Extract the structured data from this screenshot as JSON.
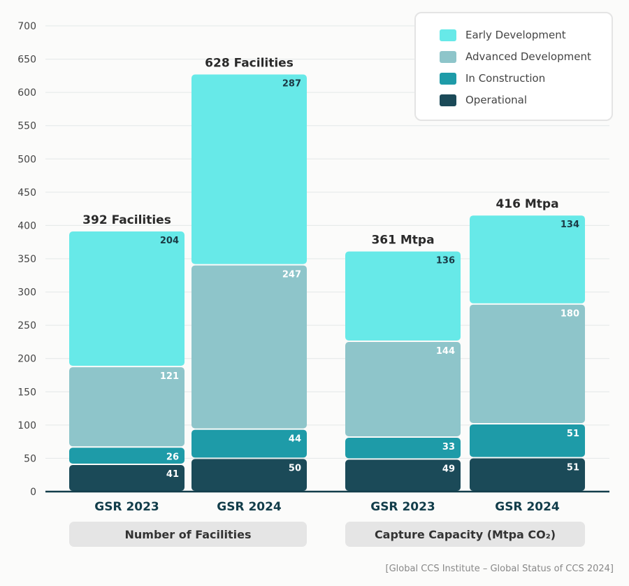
{
  "chart_data": {
    "type": "bar",
    "stacked": true,
    "categories": [
      "GSR 2023",
      "GSR 2024",
      "GSR 2023",
      "GSR 2024"
    ],
    "groups": [
      {
        "label": "Number of Facilities",
        "categories": [
          0,
          1
        ]
      },
      {
        "label": "Capture Capacity (Mtpa CO₂)",
        "categories": [
          2,
          3
        ]
      }
    ],
    "series": [
      {
        "name": "Operational",
        "color": "#1b4a58",
        "values": [
          41,
          50,
          49,
          51
        ]
      },
      {
        "name": "In Construction",
        "color": "#1e9ba8",
        "values": [
          26,
          44,
          33,
          51
        ]
      },
      {
        "name": "Advanced Development",
        "color": "#8ec5ca",
        "values": [
          121,
          247,
          144,
          180
        ]
      },
      {
        "name": "Early Development",
        "color": "#67e9e8",
        "values": [
          204,
          287,
          136,
          134
        ]
      }
    ],
    "totals": [
      392,
      628,
      361,
      416
    ],
    "total_labels": [
      "392 Facilities",
      "628 Facilities",
      "361 Mtpa",
      "416 Mtpa"
    ],
    "ylim": [
      0,
      700
    ],
    "yticks": [
      0,
      50,
      100,
      150,
      200,
      250,
      300,
      350,
      400,
      450,
      500,
      550,
      600,
      650,
      700
    ],
    "grid": true,
    "legend_position": "top-right",
    "legend_order": [
      "Early Development",
      "Advanced Development",
      "In Construction",
      "Operational"
    ],
    "source": "[Global CCS Institute – Global Status of CCS 2024]"
  }
}
